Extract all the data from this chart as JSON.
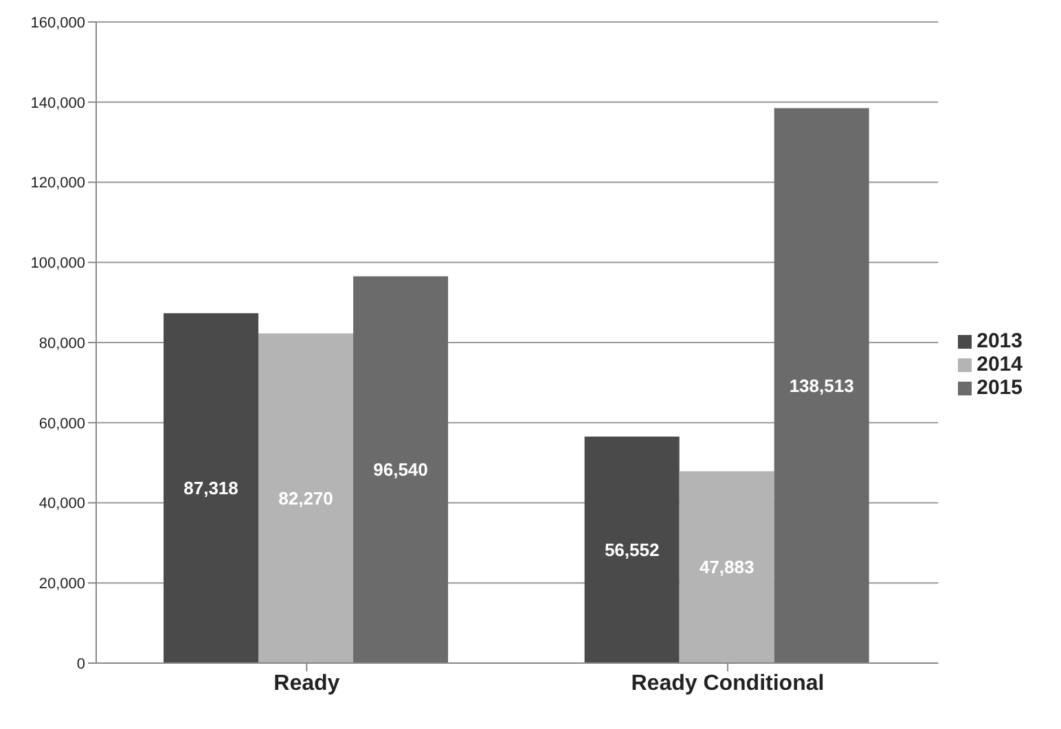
{
  "chart_data": {
    "type": "bar",
    "categories": [
      "Ready",
      "Ready Conditional"
    ],
    "series": [
      {
        "name": "2013",
        "color": "#4a4a4a",
        "values": [
          87318,
          56552
        ],
        "value_labels": [
          "87,318",
          "56,552"
        ]
      },
      {
        "name": "2014",
        "color": "#b4b4b4",
        "values": [
          82270,
          47883
        ],
        "value_labels": [
          "82,270",
          "47,883"
        ]
      },
      {
        "name": "2015",
        "color": "#6b6b6b",
        "values": [
          96540,
          138513
        ],
        "value_labels": [
          "96,540",
          "138,513"
        ]
      }
    ],
    "ylim": [
      0,
      160000
    ],
    "yticks": [
      0,
      {
        "value": 20000,
        "label": "20,000"
      },
      {
        "value": 40000,
        "label": "40,000"
      },
      {
        "value": 60000,
        "label": "60,000"
      },
      {
        "value": 80000,
        "label": "80,000"
      },
      {
        "value": 100000,
        "label": "100,000"
      },
      {
        "value": 120000,
        "label": "120,000"
      },
      {
        "value": 140000,
        "label": "140,000"
      },
      {
        "value": 160000,
        "label": "160,000"
      }
    ],
    "grid": "y",
    "legend": "right"
  }
}
